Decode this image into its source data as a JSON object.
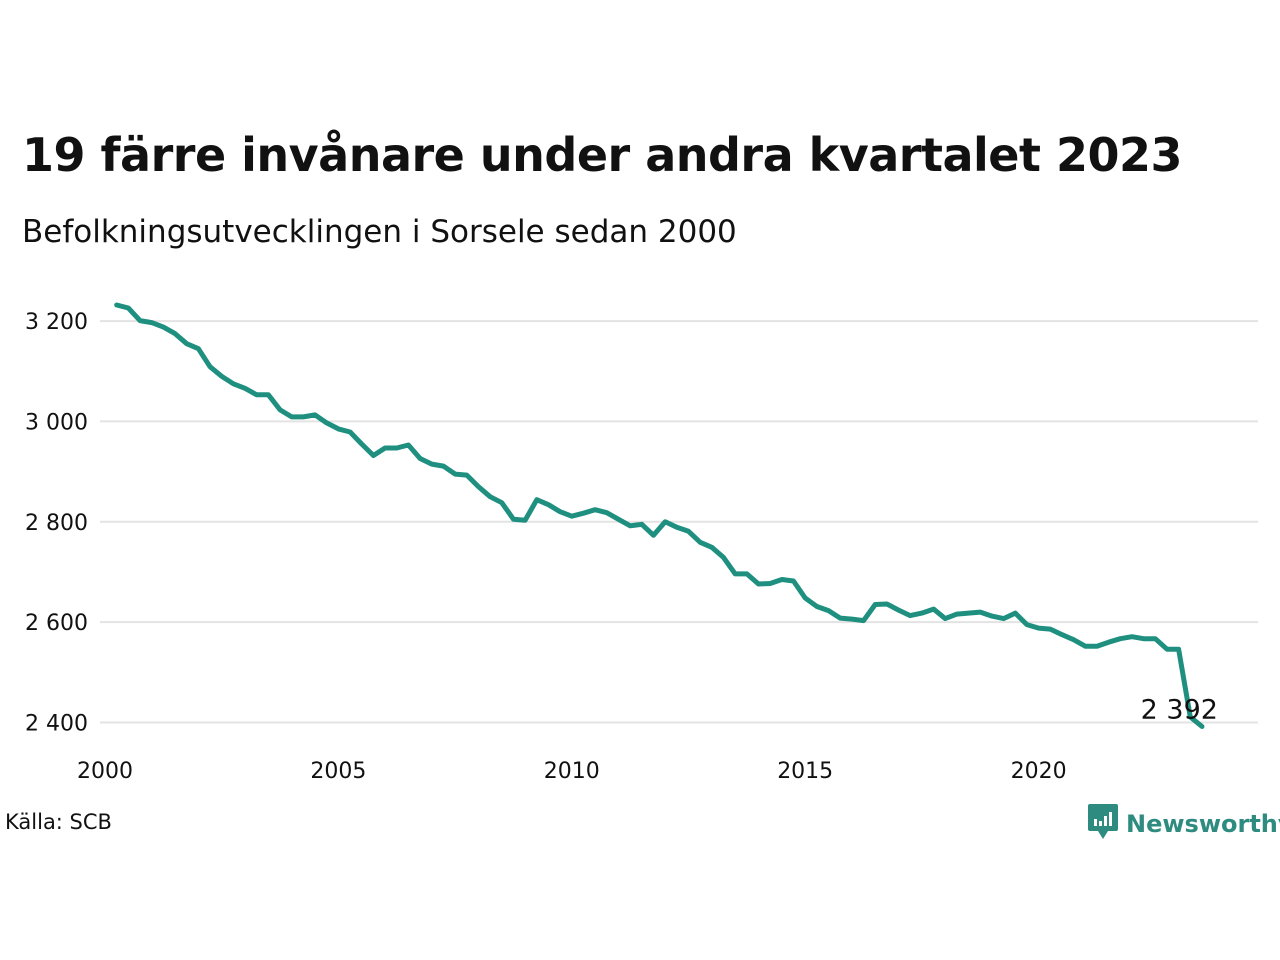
{
  "header": {
    "title": "19 färre invånare under andra kvartalet 2023",
    "subtitle": "Befolkningsutvecklingen i Sorsele sedan 2000"
  },
  "footer": {
    "source": "Källa: SCB",
    "brand": "Newsworthy",
    "brand_icon": "newsworthy-logo-icon",
    "brand_color": "#2e8b80"
  },
  "colors": {
    "line": "#1f9080",
    "grid": "#e3e3e3",
    "text": "#111111"
  },
  "chart_data": {
    "type": "line",
    "title": "19 färre invånare under andra kvartalet 2023",
    "subtitle": "Befolkningsutvecklingen i Sorsele sedan 2000",
    "xlabel": "",
    "ylabel": "",
    "xlim": [
      2000,
      2024.7
    ],
    "ylim": [
      2365,
      3250
    ],
    "x_ticks": [
      2000,
      2005,
      2010,
      2015,
      2020
    ],
    "x_tick_labels": [
      "2000",
      "2005",
      "2010",
      "2015",
      "2020"
    ],
    "y_ticks": [
      2400,
      2600,
      2800,
      3000,
      3200
    ],
    "y_tick_labels": [
      "2 400",
      "2 600",
      "2 800",
      "3 000",
      "3 200"
    ],
    "grid": "horizontal",
    "legend": "none",
    "end_label": "2 392",
    "series": [
      {
        "x": [
          2000.25,
          2000.5,
          2000.75,
          2001.0,
          2001.25,
          2001.5,
          2001.75,
          2002.0,
          2002.25,
          2002.5,
          2002.75,
          2003.0,
          2003.25,
          2003.5,
          2003.75,
          2004.0,
          2004.25,
          2004.5,
          2004.75,
          2005.0,
          2005.25,
          2005.5,
          2005.75,
          2006.0,
          2006.25,
          2006.5,
          2006.75,
          2007.0,
          2007.25,
          2007.5,
          2007.75,
          2008.0,
          2008.25,
          2008.5,
          2008.75,
          2009.0,
          2009.25,
          2009.5,
          2009.75,
          2010.0,
          2010.25,
          2010.5,
          2010.75,
          2011.0,
          2011.25,
          2011.5,
          2011.75,
          2012.0,
          2012.25,
          2012.5,
          2012.75,
          2013.0,
          2013.25,
          2013.5,
          2013.75,
          2014.0,
          2014.25,
          2014.5,
          2014.75,
          2015.0,
          2015.25,
          2015.5,
          2015.75,
          2016.0,
          2016.25,
          2016.5,
          2016.75,
          2017.0,
          2017.25,
          2017.5,
          2017.75,
          2018.0,
          2018.25,
          2018.5,
          2018.75,
          2019.0,
          2019.25,
          2019.5,
          2019.75,
          2020.0,
          2020.25,
          2020.5,
          2020.75,
          2021.0,
          2021.25,
          2021.5,
          2021.75,
          2022.0,
          2022.25,
          2022.5,
          2022.75,
          2023.0,
          2023.25,
          2023.5
        ],
        "values": [
          3232,
          3226,
          3201,
          3197,
          3188,
          3175,
          3155,
          3145,
          3109,
          3090,
          3075,
          3066,
          3053,
          3053,
          3023,
          3009,
          3009,
          3013,
          2997,
          2985,
          2979,
          2955,
          2932,
          2947,
          2947,
          2953,
          2926,
          2915,
          2911,
          2895,
          2893,
          2870,
          2850,
          2838,
          2805,
          2803,
          2844,
          2834,
          2820,
          2811,
          2817,
          2824,
          2818,
          2805,
          2792,
          2795,
          2773,
          2800,
          2789,
          2781,
          2759,
          2749,
          2729,
          2696,
          2696,
          2676,
          2677,
          2685,
          2682,
          2648,
          2631,
          2623,
          2608,
          2606,
          2603,
          2635,
          2636,
          2624,
          2613,
          2618,
          2626,
          2607,
          2616,
          2618,
          2620,
          2612,
          2607,
          2618,
          2595,
          2588,
          2586,
          2575,
          2565,
          2552,
          2552,
          2560,
          2567,
          2571,
          2567,
          2567,
          2546,
          2546,
          2411,
          2392
        ]
      }
    ]
  }
}
